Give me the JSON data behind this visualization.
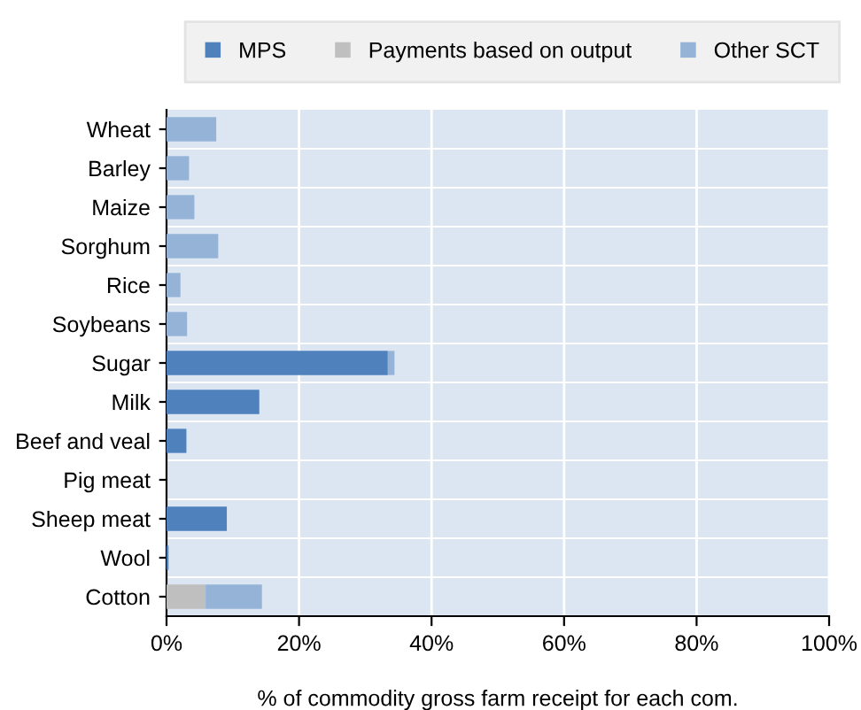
{
  "chart_data": {
    "type": "bar",
    "orientation": "horizontal",
    "stacked": true,
    "xlabel": "% of commodity gross farm receipt for each com.",
    "categories": [
      "Wheat",
      "Barley",
      "Maize",
      "Sorghum",
      "Rice",
      "Soybeans",
      "Sugar",
      "Milk",
      "Beef and veal",
      "Pig meat",
      "Sheep meat",
      "Wool",
      "Cotton"
    ],
    "series": [
      {
        "name": "MPS",
        "color": "#4f81bd",
        "values": [
          0,
          0,
          0,
          0,
          0,
          0,
          33.4,
          14.0,
          3.0,
          0,
          9.1,
          0.3,
          0
        ]
      },
      {
        "name": "Payments based on output",
        "color": "#bfbfbf",
        "values": [
          0,
          0,
          0,
          0,
          0,
          0,
          0,
          0,
          0,
          0,
          0,
          0,
          5.9
        ]
      },
      {
        "name": "Other SCT",
        "color": "#95b3d7",
        "values": [
          7.5,
          3.4,
          4.2,
          7.8,
          2.1,
          3.1,
          1.0,
          0,
          0,
          0,
          0,
          0,
          8.5
        ]
      }
    ],
    "xlim": [
      0,
      100
    ],
    "xticks": [
      {
        "value": 0,
        "label": "0%"
      },
      {
        "value": 20,
        "label": "20%"
      },
      {
        "value": 40,
        "label": "40%"
      },
      {
        "value": 60,
        "label": "60%"
      },
      {
        "value": 80,
        "label": "80%"
      },
      {
        "value": 100,
        "label": "100%"
      }
    ],
    "grid": "x",
    "legend": "top"
  }
}
